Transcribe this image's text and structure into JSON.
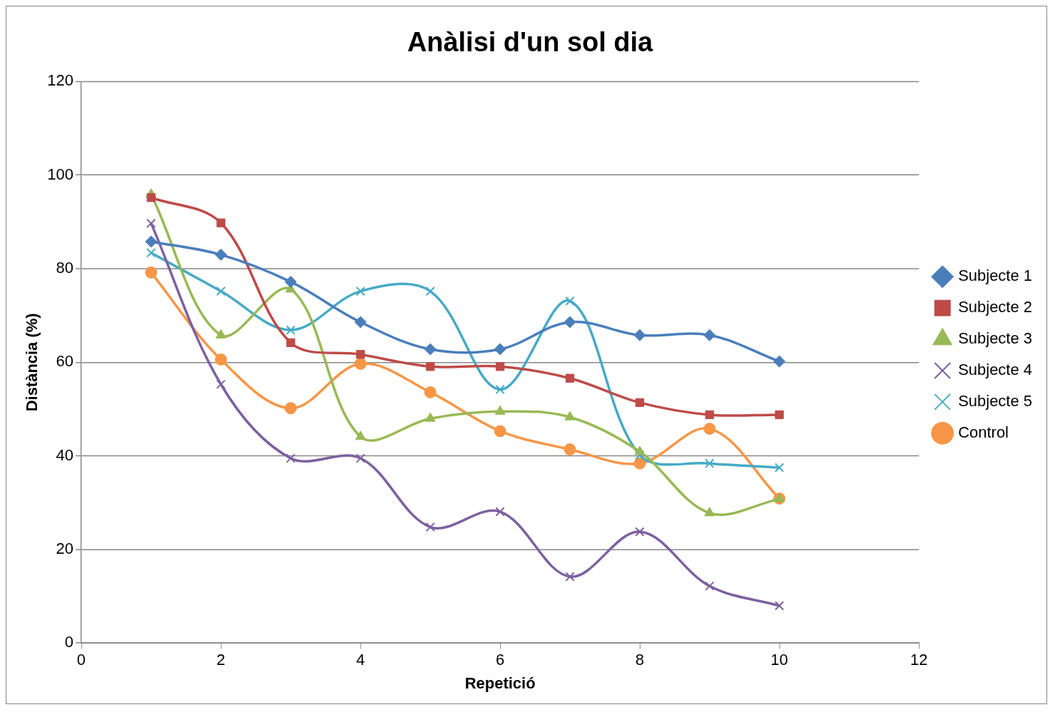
{
  "chart_data": {
    "type": "line",
    "title": "Anàlisi d'un sol dia",
    "xlabel": "Repetició",
    "ylabel": "Distància (%)",
    "x": [
      1,
      2,
      3,
      4,
      5,
      6,
      7,
      8,
      9,
      10
    ],
    "series": [
      {
        "name": "Subjecte 1",
        "color": "#4a7ebb",
        "marker": "diamond",
        "values": [
          85.8,
          83,
          77.2,
          68.6,
          62.8,
          62.8,
          68.6,
          65.8,
          65.8,
          60.2
        ]
      },
      {
        "name": "Subjecte 2",
        "color": "#be4b48",
        "marker": "square",
        "values": [
          95.2,
          89.8,
          64.2,
          61.7,
          59.1,
          59.1,
          56.6,
          51.4,
          48.8,
          48.8
        ]
      },
      {
        "name": "Subjecte 3",
        "color": "#98b954",
        "marker": "triangle",
        "values": [
          95.9,
          65.8,
          75.6,
          44.1,
          48,
          49.5,
          48.3,
          40.9,
          27.8,
          30.8
        ]
      },
      {
        "name": "Subjecte 4",
        "color": "#7d60a0",
        "marker": "cross",
        "values": [
          89.7,
          55.3,
          39.5,
          39.5,
          24.8,
          28.1,
          14.2,
          23.8,
          12.2,
          8
        ]
      },
      {
        "name": "Subjecte 5",
        "color": "#46aac5",
        "marker": "cross",
        "values": [
          83.4,
          75.2,
          66.9,
          75.2,
          75.2,
          54.2,
          73.1,
          40.2,
          38.4,
          37.5
        ]
      },
      {
        "name": "Control",
        "color": "#f79646",
        "marker": "circle",
        "values": [
          79.2,
          60.6,
          50.2,
          59.7,
          53.6,
          45.3,
          41.4,
          38.4,
          45.8,
          30.9
        ]
      }
    ],
    "xlim": [
      0,
      12
    ],
    "xticks": [
      0,
      2,
      4,
      6,
      8,
      10,
      12
    ],
    "ylim": [
      0,
      120
    ],
    "yticks": [
      0,
      20,
      40,
      60,
      80,
      100,
      120
    ],
    "grid": "y",
    "legend": "right"
  }
}
